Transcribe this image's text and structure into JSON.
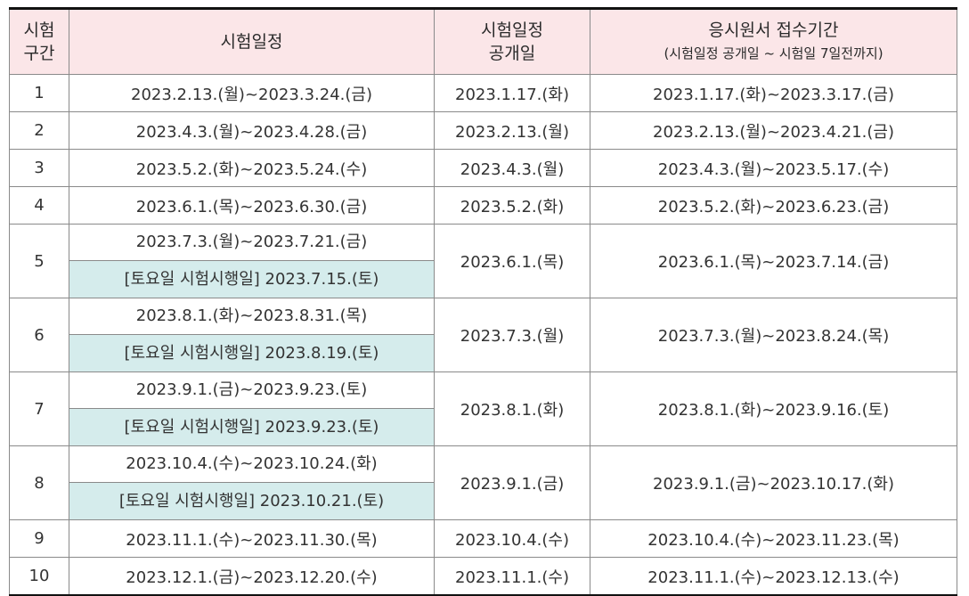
{
  "header": {
    "col1_line1": "시험",
    "col1_line2": "구간",
    "col2": "시험일정",
    "col3_line1": "시험일정",
    "col3_line2": "공개일",
    "col4_line1": "응시원서 접수기간",
    "col4_line2": "(시험일정 공개일 ~ 시험일 7일전까지)"
  },
  "rows": [
    {
      "no": "1",
      "schedule": "2023.2.13.(월)~2023.3.24.(금)",
      "saturday": "",
      "published": "2023.1.17.(화)",
      "application": "2023.1.17.(화)~2023.3.17.(금)"
    },
    {
      "no": "2",
      "schedule": "2023.4.3.(월)~2023.4.28.(금)",
      "saturday": "",
      "published": "2023.2.13.(월)",
      "application": "2023.2.13.(월)~2023.4.21.(금)"
    },
    {
      "no": "3",
      "schedule": "2023.5.2.(화)~2023.5.24.(수)",
      "saturday": "",
      "published": "2023.4.3.(월)",
      "application": "2023.4.3.(월)~2023.5.17.(수)"
    },
    {
      "no": "4",
      "schedule": "2023.6.1.(목)~2023.6.30.(금)",
      "saturday": "",
      "published": "2023.5.2.(화)",
      "application": "2023.5.2.(화)~2023.6.23.(금)"
    },
    {
      "no": "5",
      "schedule": "2023.7.3.(월)~2023.7.21.(금)",
      "saturday": "[토요일 시험시행일] 2023.7.15.(토)",
      "published": "2023.6.1.(목)",
      "application": "2023.6.1.(목)~2023.7.14.(금)"
    },
    {
      "no": "6",
      "schedule": "2023.8.1.(화)~2023.8.31.(목)",
      "saturday": "[토요일 시험시행일] 2023.8.19.(토)",
      "published": "2023.7.3.(월)",
      "application": "2023.7.3.(월)~2023.8.24.(목)"
    },
    {
      "no": "7",
      "schedule": "2023.9.1.(금)~2023.9.23.(토)",
      "saturday": "[토요일 시험시행일] 2023.9.23.(토)",
      "published": "2023.8.1.(화)",
      "application": "2023.8.1.(화)~2023.9.16.(토)"
    },
    {
      "no": "8",
      "schedule": "2023.10.4.(수)~2023.10.24.(화)",
      "saturday": "[토요일 시험시행일] 2023.10.21.(토)",
      "published": "2023.9.1.(금)",
      "application": "2023.9.1.(금)~2023.10.17.(화)"
    },
    {
      "no": "9",
      "schedule": "2023.11.1.(수)~2023.11.30.(목)",
      "saturday": "",
      "published": "2023.10.4.(수)",
      "application": "2023.10.4.(수)~2023.11.23.(목)"
    },
    {
      "no": "10",
      "schedule": "2023.12.1.(금)~2023.12.20.(수)",
      "saturday": "",
      "published": "2023.11.1.(수)",
      "application": "2023.11.1.(수)~2023.12.13.(수)"
    }
  ]
}
